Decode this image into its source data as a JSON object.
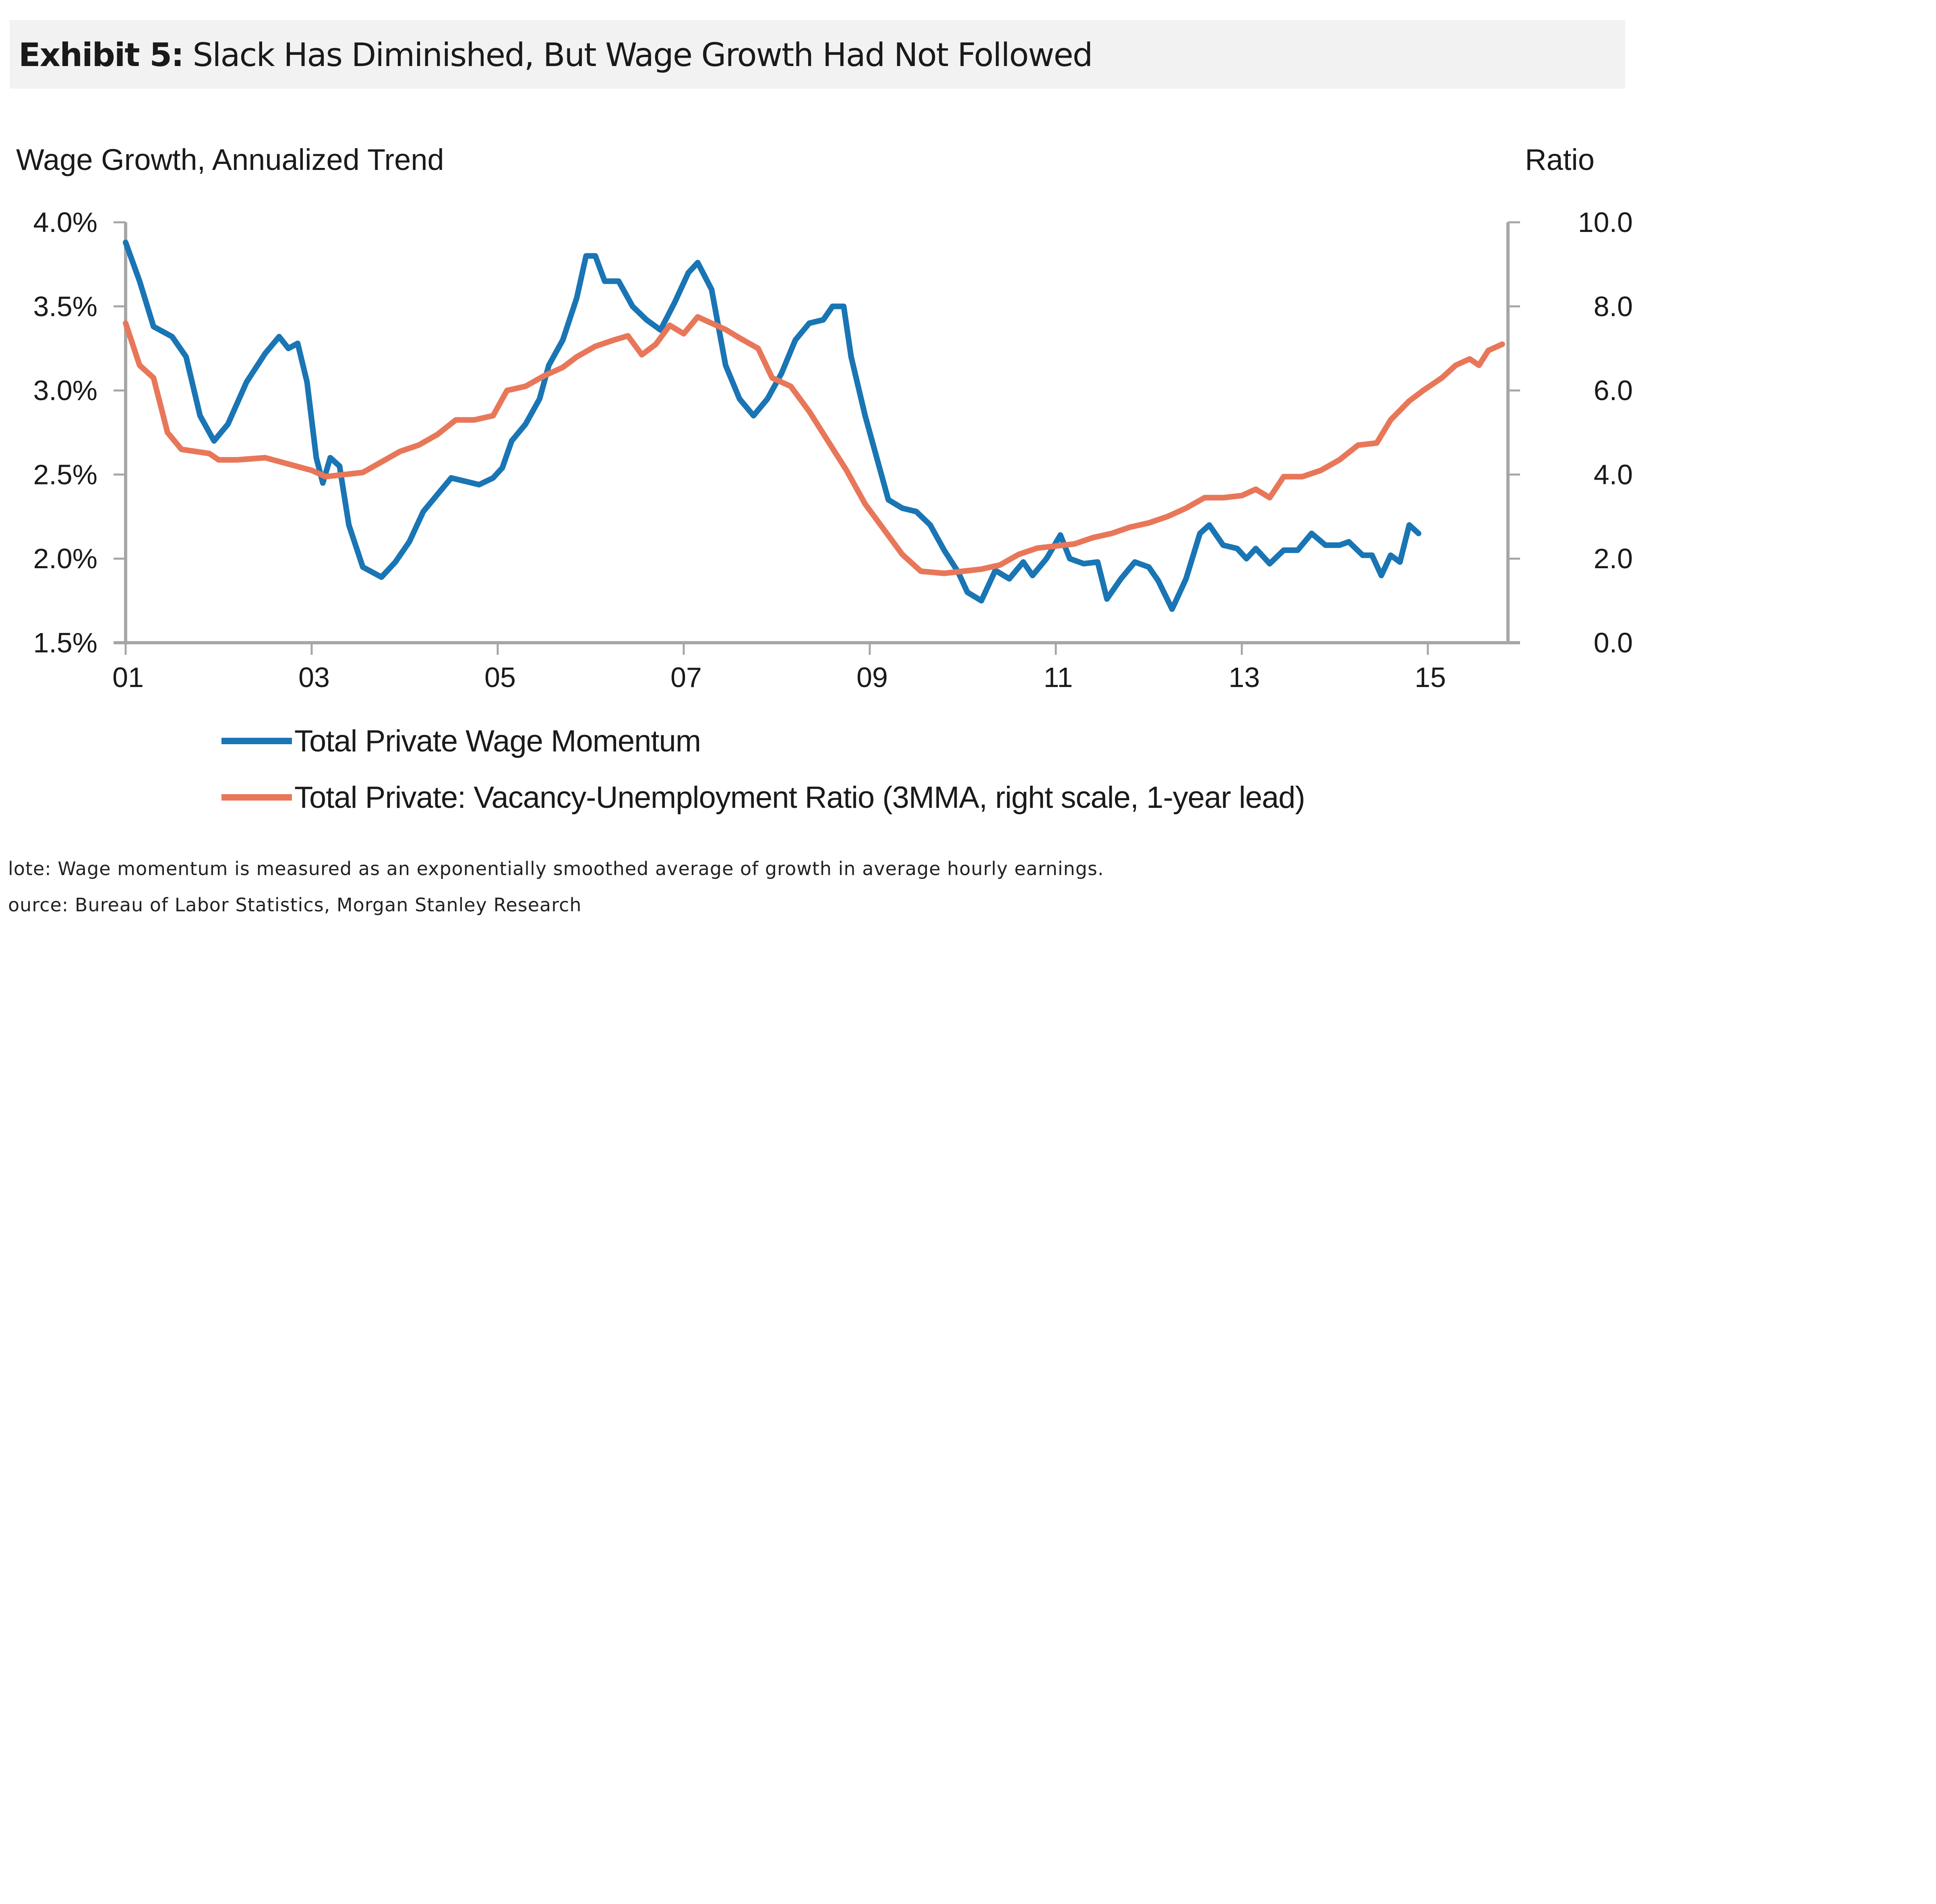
{
  "header": {
    "exhibit_label": "Exhibit 5:",
    "title": "Slack Has Diminished, But Wage Growth Had Not Followed"
  },
  "notes": {
    "note": "lote: Wage momentum is measured as an exponentially smoothed average of growth in average hourly earnings.",
    "source": "ource: Bureau of Labor Statistics, Morgan Stanley Research"
  },
  "colors": {
    "wage": "#1a75b4",
    "ratio": "#e8775a",
    "axis": "#a6a6a6"
  },
  "chart_data": {
    "type": "line",
    "title": "Slack Has Diminished, But Wage Growth Had Not Followed",
    "xlabel": "",
    "ylabel": "Wage Growth, Annualized Trend",
    "y2label": "Ratio",
    "x_ticks": [
      2001,
      2003,
      2005,
      2007,
      2009,
      2011,
      2013,
      2015
    ],
    "x_tick_labels": [
      "01",
      "03",
      "05",
      "07",
      "09",
      "11",
      "13",
      "15"
    ],
    "xlim": [
      2001,
      2015.9
    ],
    "ylim": [
      1.5,
      4.0
    ],
    "y_ticks": [
      1.5,
      2.0,
      2.5,
      3.0,
      3.5,
      4.0
    ],
    "y_tick_labels": [
      "1.5%",
      "2.0%",
      "2.5%",
      "3.0%",
      "3.5%",
      "4.0%"
    ],
    "y2lim": [
      0,
      10
    ],
    "y2_ticks": [
      0,
      2,
      4,
      6,
      8,
      10
    ],
    "y2_tick_labels": [
      "0.0",
      "2.0",
      "4.0",
      "6.0",
      "8.0",
      "10.0"
    ],
    "grid": false,
    "legend_position": "bottom",
    "series": [
      {
        "name": "Total Private Wage Momentum",
        "axis": "left",
        "color": "#1a75b4",
        "points": [
          [
            2001.0,
            3.88
          ],
          [
            2001.15,
            3.65
          ],
          [
            2001.3,
            3.38
          ],
          [
            2001.5,
            3.32
          ],
          [
            2001.65,
            3.2
          ],
          [
            2001.8,
            2.85
          ],
          [
            2001.95,
            2.7
          ],
          [
            2002.1,
            2.8
          ],
          [
            2002.3,
            3.05
          ],
          [
            2002.5,
            3.22
          ],
          [
            2002.65,
            3.32
          ],
          [
            2002.75,
            3.25
          ],
          [
            2002.85,
            3.28
          ],
          [
            2002.95,
            3.05
          ],
          [
            2003.05,
            2.6
          ],
          [
            2003.12,
            2.45
          ],
          [
            2003.2,
            2.6
          ],
          [
            2003.3,
            2.55
          ],
          [
            2003.4,
            2.2
          ],
          [
            2003.55,
            1.95
          ],
          [
            2003.75,
            1.89
          ],
          [
            2003.9,
            1.98
          ],
          [
            2004.05,
            2.1
          ],
          [
            2004.2,
            2.28
          ],
          [
            2004.35,
            2.38
          ],
          [
            2004.5,
            2.48
          ],
          [
            2004.65,
            2.46
          ],
          [
            2004.8,
            2.44
          ],
          [
            2004.95,
            2.48
          ],
          [
            2005.05,
            2.54
          ],
          [
            2005.15,
            2.7
          ],
          [
            2005.3,
            2.8
          ],
          [
            2005.45,
            2.95
          ],
          [
            2005.55,
            3.15
          ],
          [
            2005.7,
            3.3
          ],
          [
            2005.85,
            3.55
          ],
          [
            2005.95,
            3.8
          ],
          [
            2006.05,
            3.8
          ],
          [
            2006.15,
            3.65
          ],
          [
            2006.3,
            3.65
          ],
          [
            2006.45,
            3.5
          ],
          [
            2006.6,
            3.42
          ],
          [
            2006.75,
            3.36
          ],
          [
            2006.9,
            3.52
          ],
          [
            2007.05,
            3.7
          ],
          [
            2007.15,
            3.76
          ],
          [
            2007.3,
            3.6
          ],
          [
            2007.45,
            3.15
          ],
          [
            2007.6,
            2.95
          ],
          [
            2007.75,
            2.85
          ],
          [
            2007.9,
            2.95
          ],
          [
            2008.05,
            3.1
          ],
          [
            2008.2,
            3.3
          ],
          [
            2008.35,
            3.4
          ],
          [
            2008.5,
            3.42
          ],
          [
            2008.6,
            3.5
          ],
          [
            2008.72,
            3.5
          ],
          [
            2008.8,
            3.2
          ],
          [
            2008.95,
            2.85
          ],
          [
            2009.1,
            2.55
          ],
          [
            2009.2,
            2.35
          ],
          [
            2009.35,
            2.3
          ],
          [
            2009.5,
            2.28
          ],
          [
            2009.65,
            2.2
          ],
          [
            2009.8,
            2.05
          ],
          [
            2009.95,
            1.92
          ],
          [
            2010.05,
            1.8
          ],
          [
            2010.2,
            1.75
          ],
          [
            2010.35,
            1.93
          ],
          [
            2010.5,
            1.88
          ],
          [
            2010.65,
            1.98
          ],
          [
            2010.75,
            1.9
          ],
          [
            2010.9,
            2.0
          ],
          [
            2011.05,
            2.14
          ],
          [
            2011.15,
            2.0
          ],
          [
            2011.3,
            1.97
          ],
          [
            2011.45,
            1.98
          ],
          [
            2011.55,
            1.76
          ],
          [
            2011.7,
            1.88
          ],
          [
            2011.85,
            1.98
          ],
          [
            2012.0,
            1.95
          ],
          [
            2012.1,
            1.87
          ],
          [
            2012.25,
            1.7
          ],
          [
            2012.4,
            1.88
          ],
          [
            2012.55,
            2.15
          ],
          [
            2012.65,
            2.2
          ],
          [
            2012.8,
            2.08
          ],
          [
            2012.95,
            2.06
          ],
          [
            2013.05,
            2.0
          ],
          [
            2013.15,
            2.06
          ],
          [
            2013.3,
            1.97
          ],
          [
            2013.45,
            2.05
          ],
          [
            2013.6,
            2.05
          ],
          [
            2013.75,
            2.15
          ],
          [
            2013.9,
            2.08
          ],
          [
            2014.05,
            2.08
          ],
          [
            2014.15,
            2.1
          ],
          [
            2014.3,
            2.02
          ],
          [
            2014.4,
            2.02
          ],
          [
            2014.5,
            1.9
          ],
          [
            2014.6,
            2.02
          ],
          [
            2014.7,
            1.98
          ],
          [
            2014.8,
            2.2
          ],
          [
            2014.9,
            2.15
          ]
        ]
      },
      {
        "name": "Total Private: Vacancy-Unemployment Ratio (3MMA, right scale, 1-year lead)",
        "axis": "right",
        "color": "#e8775a",
        "points": [
          [
            2001.0,
            7.6
          ],
          [
            2001.15,
            6.6
          ],
          [
            2001.3,
            6.3
          ],
          [
            2001.45,
            5.0
          ],
          [
            2001.6,
            4.6
          ],
          [
            2001.9,
            4.5
          ],
          [
            2002.0,
            4.35
          ],
          [
            2002.2,
            4.35
          ],
          [
            2002.5,
            4.4
          ],
          [
            2002.75,
            4.25
          ],
          [
            2003.0,
            4.1
          ],
          [
            2003.15,
            3.95
          ],
          [
            2003.35,
            4.0
          ],
          [
            2003.55,
            4.05
          ],
          [
            2003.75,
            4.3
          ],
          [
            2003.95,
            4.55
          ],
          [
            2004.15,
            4.7
          ],
          [
            2004.35,
            4.95
          ],
          [
            2004.55,
            5.3
          ],
          [
            2004.75,
            5.3
          ],
          [
            2004.95,
            5.4
          ],
          [
            2005.1,
            6.0
          ],
          [
            2005.3,
            6.1
          ],
          [
            2005.5,
            6.35
          ],
          [
            2005.7,
            6.55
          ],
          [
            2005.85,
            6.8
          ],
          [
            2006.05,
            7.05
          ],
          [
            2006.25,
            7.2
          ],
          [
            2006.4,
            7.3
          ],
          [
            2006.55,
            6.85
          ],
          [
            2006.7,
            7.1
          ],
          [
            2006.85,
            7.55
          ],
          [
            2007.0,
            7.35
          ],
          [
            2007.15,
            7.75
          ],
          [
            2007.3,
            7.6
          ],
          [
            2007.45,
            7.45
          ],
          [
            2007.6,
            7.25
          ],
          [
            2007.8,
            7.0
          ],
          [
            2007.95,
            6.3
          ],
          [
            2008.15,
            6.1
          ],
          [
            2008.35,
            5.5
          ],
          [
            2008.55,
            4.8
          ],
          [
            2008.75,
            4.1
          ],
          [
            2008.95,
            3.3
          ],
          [
            2009.15,
            2.7
          ],
          [
            2009.35,
            2.1
          ],
          [
            2009.55,
            1.7
          ],
          [
            2009.8,
            1.65
          ],
          [
            2010.0,
            1.7
          ],
          [
            2010.2,
            1.75
          ],
          [
            2010.4,
            1.85
          ],
          [
            2010.6,
            2.1
          ],
          [
            2010.8,
            2.25
          ],
          [
            2011.0,
            2.3
          ],
          [
            2011.2,
            2.35
          ],
          [
            2011.4,
            2.5
          ],
          [
            2011.6,
            2.6
          ],
          [
            2011.8,
            2.75
          ],
          [
            2012.0,
            2.85
          ],
          [
            2012.2,
            3.0
          ],
          [
            2012.4,
            3.2
          ],
          [
            2012.6,
            3.45
          ],
          [
            2012.8,
            3.45
          ],
          [
            2013.0,
            3.5
          ],
          [
            2013.15,
            3.65
          ],
          [
            2013.3,
            3.45
          ],
          [
            2013.45,
            3.95
          ],
          [
            2013.65,
            3.95
          ],
          [
            2013.85,
            4.1
          ],
          [
            2014.05,
            4.35
          ],
          [
            2014.25,
            4.7
          ],
          [
            2014.45,
            4.75
          ],
          [
            2014.6,
            5.3
          ],
          [
            2014.8,
            5.75
          ],
          [
            2014.95,
            6.0
          ],
          [
            2015.15,
            6.3
          ],
          [
            2015.3,
            6.6
          ],
          [
            2015.45,
            6.75
          ],
          [
            2015.55,
            6.6
          ],
          [
            2015.65,
            6.95
          ],
          [
            2015.8,
            7.1
          ]
        ]
      }
    ]
  }
}
